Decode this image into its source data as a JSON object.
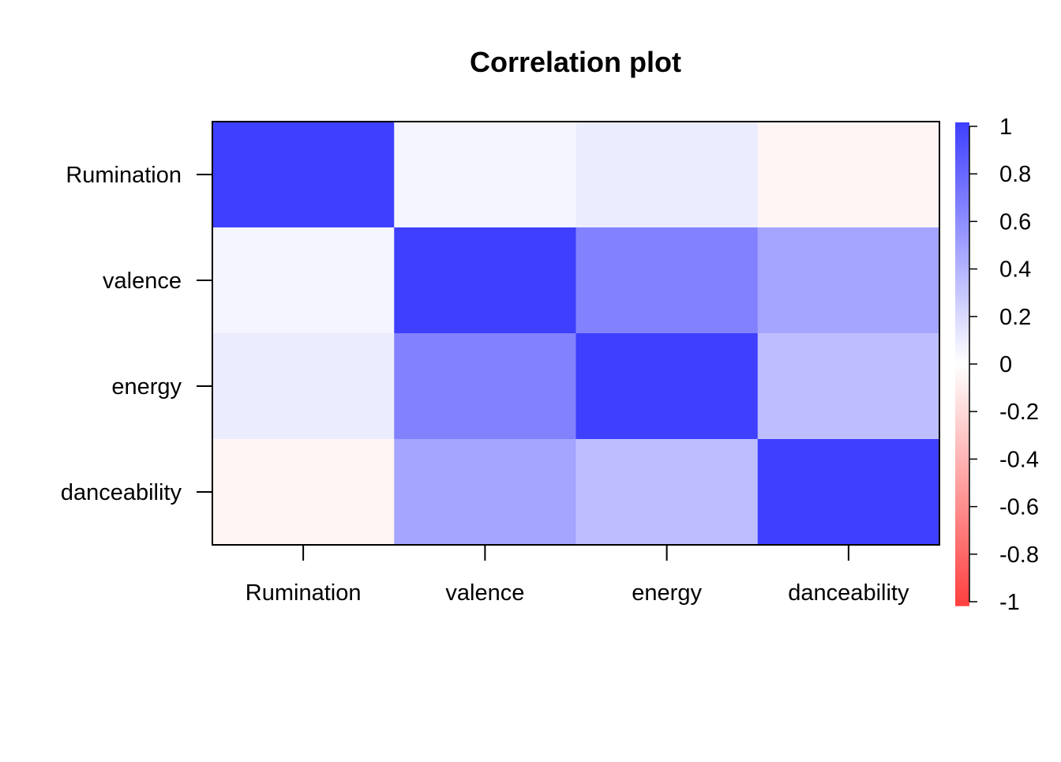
{
  "chart_data": {
    "type": "heatmap",
    "title": "Correlation plot",
    "variables": [
      "Rumination",
      "valence",
      "energy",
      "danceability"
    ],
    "matrix": [
      [
        1.0,
        0.05,
        0.1,
        -0.05
      ],
      [
        0.05,
        1.0,
        0.65,
        0.47
      ],
      [
        0.1,
        0.65,
        1.0,
        0.34
      ],
      [
        -0.05,
        0.47,
        0.34,
        1.0
      ]
    ],
    "color_scale": {
      "min": -1,
      "max": 1,
      "low_color": "#FF3F3F",
      "mid_color": "#FFFFFF",
      "high_color": "#3F3FFF",
      "ticks": [
        1,
        0.8,
        0.6,
        0.4,
        0.2,
        0,
        -0.2,
        -0.4,
        -0.6,
        -0.8,
        -1
      ],
      "tick_labels": [
        "1",
        "0.8",
        "0.6",
        "0.4",
        "0.2",
        "0",
        "-0.2",
        "-0.4",
        "-0.6",
        "-0.8",
        "-1"
      ]
    },
    "legend_position": "right",
    "grid": false
  }
}
